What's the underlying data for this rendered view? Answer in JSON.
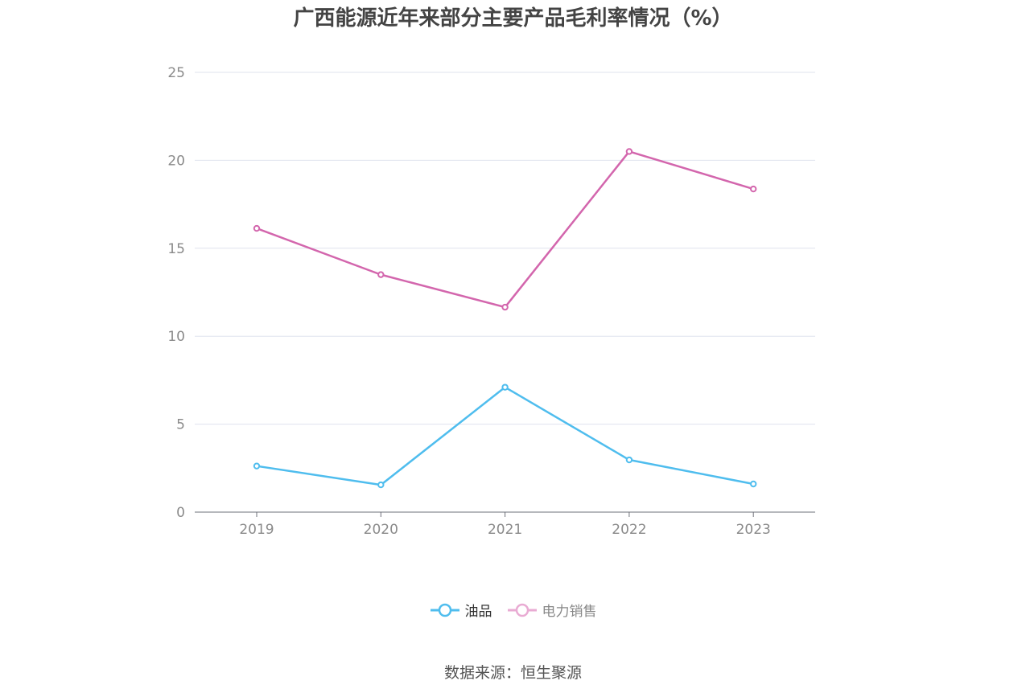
{
  "chart_data": {
    "type": "line",
    "title": "广西能源近年来部分主要产品毛利率情况（%）",
    "categories": [
      "2019",
      "2020",
      "2021",
      "2022",
      "2023"
    ],
    "series": [
      {
        "name": "油品",
        "color": "#4fbdee",
        "values": [
          2.62,
          1.55,
          7.1,
          2.97,
          1.6
        ]
      },
      {
        "name": "电力销售",
        "color": "#d366ad",
        "legend_color": "#e9abd3",
        "values": [
          16.13,
          13.5,
          11.65,
          20.5,
          18.37
        ]
      }
    ],
    "ylim": [
      0,
      25
    ],
    "yticks": [
      0,
      5,
      10,
      15,
      20,
      25
    ],
    "grid": true,
    "legend": "bottom-center"
  },
  "source": "数据来源：恒生聚源"
}
